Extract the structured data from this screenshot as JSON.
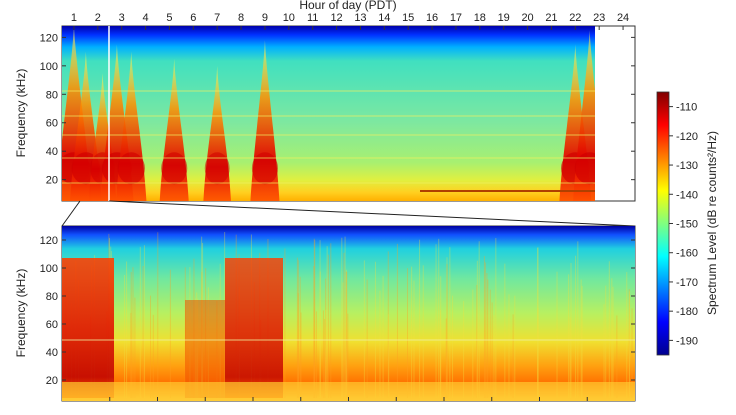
{
  "chart_data": [
    {
      "type": "heatmap",
      "title": "",
      "xlabel": "Hour of day (PDT)",
      "ylabel": "Frequency (kHz)",
      "x_ticks": [
        "1",
        "2",
        "3",
        "4",
        "5",
        "6",
        "7",
        "8",
        "9",
        "10",
        "11",
        "12",
        "13",
        "14",
        "15",
        "16",
        "17",
        "18",
        "19",
        "20",
        "21",
        "22",
        "23",
        "24"
      ],
      "xlim": [
        0.5,
        24.5
      ],
      "y_ticks": [
        20,
        40,
        60,
        80,
        100,
        120
      ],
      "ylim": [
        5,
        128
      ],
      "data_x_end": 23.3,
      "events": [
        {
          "hour": 1.0,
          "peak_khz": 128,
          "intensity": 1.0
        },
        {
          "hour": 1.5,
          "peak_khz": 110,
          "intensity": 0.85
        },
        {
          "hour": 2.2,
          "peak_khz": 95,
          "intensity": 0.7
        },
        {
          "hour": 2.8,
          "peak_khz": 115,
          "intensity": 0.9
        },
        {
          "hour": 3.4,
          "peak_khz": 110,
          "intensity": 0.8
        },
        {
          "hour": 5.2,
          "peak_khz": 105,
          "intensity": 0.75
        },
        {
          "hour": 7.0,
          "peak_khz": 100,
          "intensity": 0.7
        },
        {
          "hour": 9.0,
          "peak_khz": 118,
          "intensity": 0.75
        },
        {
          "hour": 22.0,
          "peak_khz": 115,
          "intensity": 0.85
        },
        {
          "hour": 22.6,
          "peak_khz": 125,
          "intensity": 0.9
        }
      ]
    },
    {
      "type": "heatmap",
      "title": "",
      "xlabel": "",
      "ylabel": "Frequency (kHz)",
      "y_ticks": [
        20,
        40,
        60,
        80,
        100,
        120
      ],
      "ylim": [
        5,
        130
      ],
      "description_of_range": "zoomed view spanning roughly hour 1.0 to 2.5 of the upper panel"
    }
  ],
  "colorbar": {
    "label": "Spectrum Level (dB re counts²/Hz)",
    "ticks": [
      -110,
      -120,
      -130,
      -140,
      -150,
      -160,
      -170,
      -180,
      -190
    ],
    "range": [
      -195,
      -105
    ],
    "colormap": "jet"
  }
}
